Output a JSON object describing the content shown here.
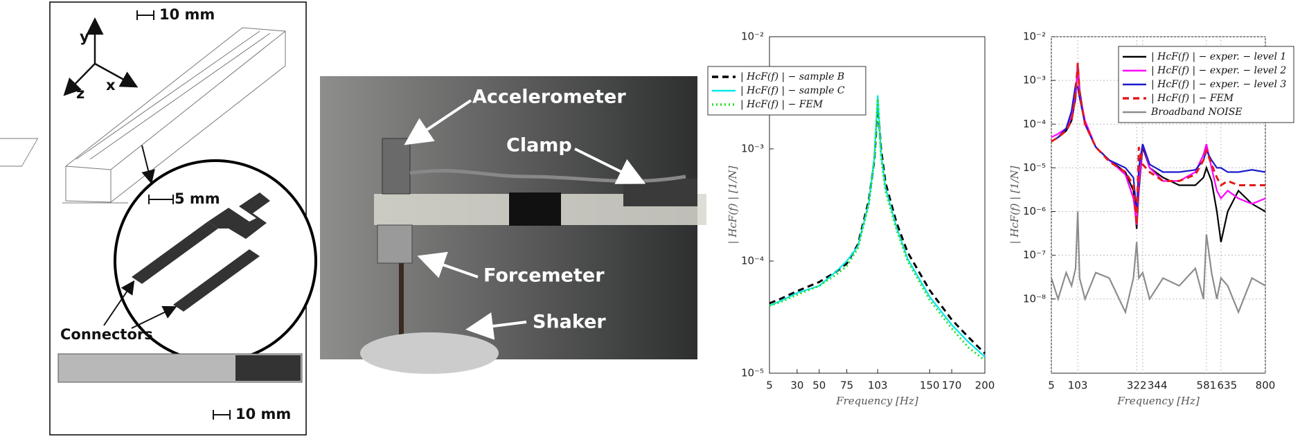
{
  "figure": {
    "schematic": {
      "scale_top": "10 mm",
      "axis_y": "y",
      "axis_z": "z",
      "axis_x": "x",
      "scale_detail": "5 mm",
      "connectors": "Connectors",
      "scale_bottom": "10 mm"
    },
    "photo": {
      "accelerometer": "Accelerometer",
      "clamp": "Clamp",
      "forcemeter": "Forcemeter",
      "shaker": "Shaker"
    }
  },
  "chart_data": [
    {
      "type": "line",
      "xlabel": "Frequency [Hz]",
      "ylabel": "| HcF(f) | [1/N]",
      "log_y": true,
      "grid": false,
      "legend": "upper left",
      "x": [
        5,
        15,
        30,
        50,
        65,
        75,
        85,
        95,
        100,
        103,
        106,
        110,
        120,
        130,
        150,
        170,
        185,
        200
      ],
      "xlim": [
        5,
        200
      ],
      "xticks": [
        5,
        30,
        50,
        75,
        103,
        150,
        170,
        200
      ],
      "ylim": [
        1e-05,
        0.01
      ],
      "yticks": [
        {
          "value": 1e-05,
          "label": "10⁻⁵"
        },
        {
          "value": 0.0001,
          "label": "10⁻⁴"
        },
        {
          "value": 0.001,
          "label": "10⁻³"
        },
        {
          "value": 0.01,
          "label": "10⁻²"
        }
      ],
      "series": [
        {
          "name": "| HcF(f) | − sample B",
          "color": "#000000",
          "line_style": "dashed",
          "values": [
            4.2e-05,
            4.6e-05,
            5.4e-05,
            6.5e-05,
            8e-05,
            9.5e-05,
            0.00014,
            0.00035,
            0.0008,
            0.0025,
            0.001,
            0.0005,
            0.00022,
            0.00012,
            5.5e-05,
            3e-05,
            2.1e-05,
            1.5e-05
          ]
        },
        {
          "name": "| HcF(f) | − sample C",
          "color": "#00e8e8",
          "line_style": "solid",
          "values": [
            4e-05,
            4.4e-05,
            5.2e-05,
            6e-05,
            8e-05,
            0.0001,
            0.000135,
            0.00033,
            0.00085,
            0.003,
            0.0009,
            0.00045,
            0.0002,
            0.000105,
            4.8e-05,
            2.7e-05,
            1.9e-05,
            1.4e-05
          ]
        },
        {
          "name": "| HcF(f) | − FEM",
          "color": "#22dd22",
          "line_style": "dotted",
          "values": [
            4e-05,
            4.3e-05,
            5e-05,
            6e-05,
            7.5e-05,
            9e-05,
            0.00013,
            0.00032,
            0.0008,
            0.0028,
            0.00085,
            0.00042,
            0.00019,
            0.0001,
            4.5e-05,
            2.5e-05,
            1.7e-05,
            1.3e-05
          ]
        }
      ]
    },
    {
      "type": "line",
      "xlabel": "Frequency [Hz]",
      "ylabel": "| HcF(f) | [1/N]",
      "log_y": true,
      "grid": true,
      "legend": "upper right",
      "x": [
        5,
        30,
        60,
        80,
        95,
        103,
        110,
        130,
        170,
        220,
        280,
        310,
        322,
        330,
        344,
        370,
        420,
        480,
        540,
        570,
        581,
        600,
        620,
        635,
        660,
        700,
        750,
        800
      ],
      "xlim": [
        5,
        800
      ],
      "xticks": [
        5,
        103,
        322,
        344,
        581,
        635,
        800
      ],
      "ylim": [
        2e-10,
        0.01
      ],
      "yticks": [
        {
          "value": 1e-08,
          "label": "10⁻⁸"
        },
        {
          "value": 1e-07,
          "label": "10⁻⁷"
        },
        {
          "value": 1e-06,
          "label": "10⁻⁶"
        },
        {
          "value": 1e-05,
          "label": "10⁻⁵"
        },
        {
          "value": 0.0001,
          "label": "10⁻⁴"
        },
        {
          "value": 0.001,
          "label": "10⁻³"
        },
        {
          "value": 0.01,
          "label": "10⁻²"
        }
      ],
      "series": [
        {
          "name": "| HcF(f) | − exper. − level 1",
          "color": "#000000",
          "line_style": "solid",
          "values": [
            4e-05,
            5e-05,
            7e-05,
            0.00012,
            0.0004,
            0.0025,
            0.0006,
            0.0001,
            3e-05,
            1.5e-05,
            8e-06,
            3e-06,
            4e-07,
            3e-06,
            3e-05,
            1e-05,
            6e-06,
            4e-06,
            4e-06,
            6e-06,
            1e-05,
            5e-06,
            1e-06,
            2e-07,
            1e-06,
            3e-06,
            1.5e-06,
            1e-06
          ]
        },
        {
          "name": "| HcF(f) | − exper. − level 2",
          "color": "#ff00ff",
          "line_style": "solid",
          "values": [
            5e-05,
            6e-05,
            8e-05,
            0.00015,
            0.0005,
            0.002,
            0.0005,
            0.00012,
            3e-05,
            1.5e-05,
            7e-06,
            2e-06,
            5e-07,
            4e-06,
            3.5e-05,
            1e-05,
            5e-06,
            5e-06,
            8e-06,
            2e-05,
            3.5e-05,
            1e-05,
            3e-06,
            2e-06,
            3e-06,
            2e-06,
            1.5e-06,
            2e-06
          ]
        },
        {
          "name": "| HcF(f) | − exper. − level 3",
          "color": "#1a1acc",
          "line_style": "solid",
          "values": [
            4e-05,
            5e-05,
            8e-05,
            0.0002,
            0.0008,
            0.0007,
            0.0004,
            0.0001,
            3e-05,
            1.5e-05,
            1e-05,
            6e-06,
            1e-06,
            1e-05,
            3.5e-05,
            1.2e-05,
            8e-06,
            8e-06,
            9e-06,
            1.5e-05,
            2.5e-05,
            1.5e-05,
            1e-05,
            1e-05,
            8e-06,
            8e-06,
            9e-06,
            8e-06
          ]
        },
        {
          "name": "| HcF(f) | − FEM",
          "color": "#e61919",
          "line_style": "dashed",
          "values": [
            4e-05,
            5e-05,
            7e-05,
            0.00012,
            0.0005,
            0.0025,
            0.0005,
            0.0001,
            3e-05,
            1.4e-05,
            8e-06,
            4e-06,
            5e-07,
            3e-05,
            1.2e-05,
            8e-06,
            5e-06,
            5e-06,
            7e-06,
            1.5e-05,
            2.5e-05,
            1.2e-05,
            6e-06,
            4e-06,
            5e-06,
            4e-06,
            4e-06,
            4e-06
          ]
        },
        {
          "name": "Broadband NOISE",
          "color": "#8c8c8c",
          "line_style": "solid",
          "values": [
            3e-08,
            1e-08,
            4e-08,
            2e-08,
            5e-08,
            1e-06,
            3e-08,
            1e-08,
            4e-08,
            3e-08,
            5e-09,
            3e-08,
            2e-07,
            3e-08,
            4e-08,
            1e-08,
            3e-08,
            2e-08,
            5e-08,
            1e-08,
            3e-07,
            4e-08,
            1e-08,
            3e-08,
            2e-08,
            5e-09,
            3e-08,
            2e-08
          ]
        }
      ]
    }
  ]
}
